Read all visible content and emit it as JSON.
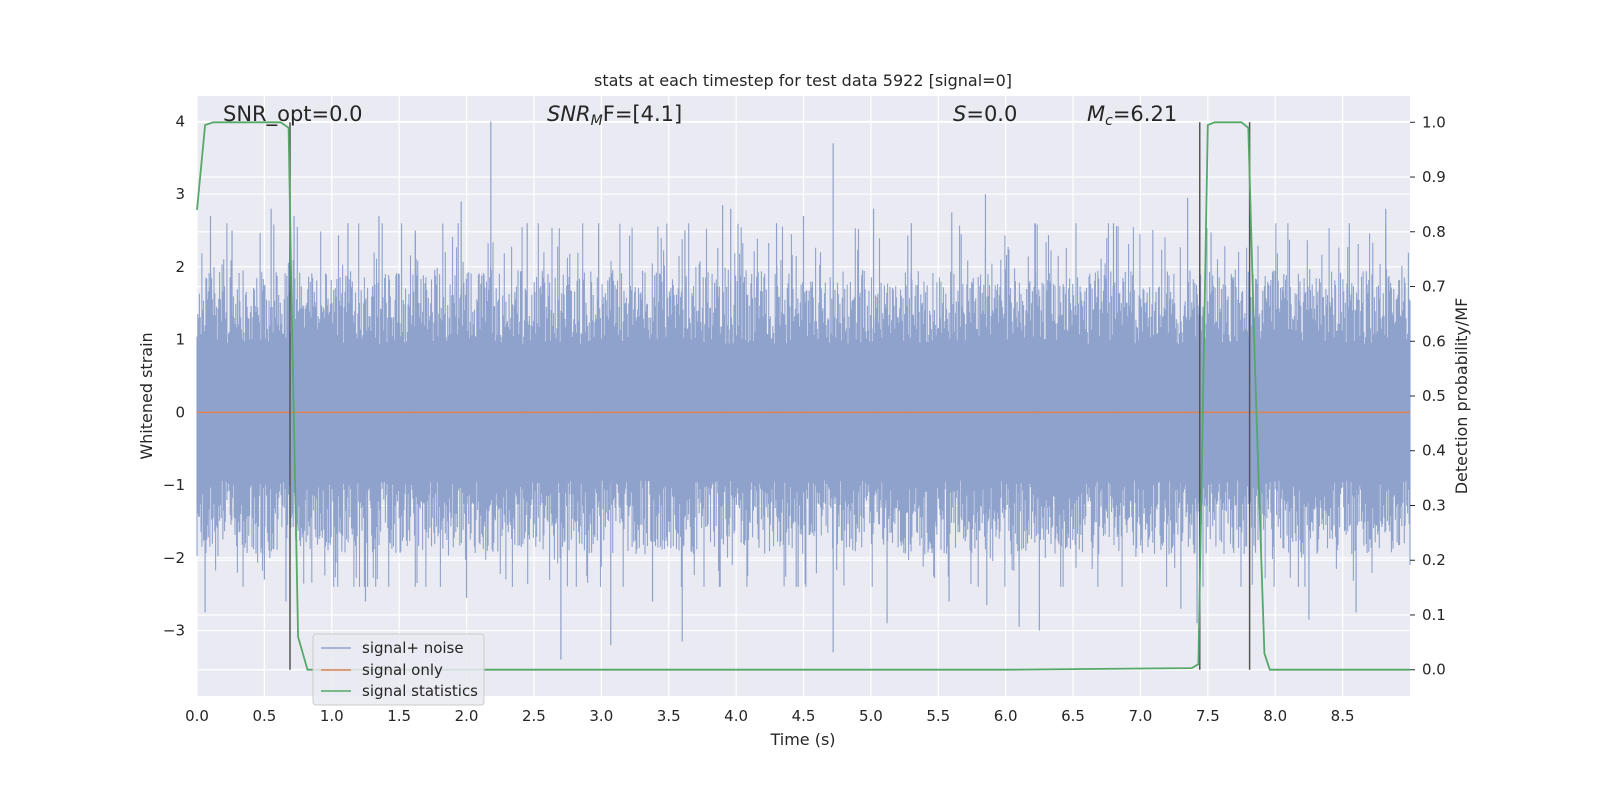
{
  "chart_data": {
    "type": "line",
    "title": "stats at each timestep for test data 5922 [signal=0]",
    "xlabel": "Time (s)",
    "ylabel_left": "Whitened strain",
    "ylabel_right": "Detection probability/MF",
    "xlim": [
      0.0,
      9.0
    ],
    "ylim_left": [
      -3.9,
      4.35
    ],
    "ylim_right": [
      -0.048,
      1.048
    ],
    "x_ticks": [
      "0.0",
      "0.5",
      "1.0",
      "1.5",
      "2.0",
      "2.5",
      "3.0",
      "3.5",
      "4.0",
      "4.5",
      "5.0",
      "5.5",
      "6.0",
      "6.5",
      "7.0",
      "7.5",
      "8.0",
      "8.5"
    ],
    "y_ticks_left": [
      "−3",
      "−2",
      "−1",
      "0",
      "1",
      "2",
      "3",
      "4"
    ],
    "y_ticks_right": [
      "0.0",
      "0.1",
      "0.2",
      "0.3",
      "0.4",
      "0.5",
      "0.6",
      "0.7",
      "0.8",
      "0.9",
      "1.0"
    ],
    "grid": true,
    "legend_location": "lower-left",
    "colors": {
      "noise": "#8ea2cc",
      "signal": "#dd8452",
      "stats": "#55a868",
      "vline": "#555555",
      "background": "#eaeaf2",
      "grid": "#ffffff"
    },
    "annotations": {
      "snr_opt": "SNR_opt=0.0",
      "snr_mf_base": "SNR",
      "snr_mf_sub": "M",
      "snr_mf_rest": "F=[4.1]",
      "s_var": "S",
      "s_rest": "=0.0",
      "mc_var": "M",
      "mc_sub": "c",
      "mc_rest": "=6.21"
    },
    "series": [
      {
        "name": "signal+ noise",
        "axis": "left",
        "description_level": "noise band roughly ±1.7 with spikes up to 4.0 and down to −3.4",
        "band": [
          -1.7,
          1.7
        ],
        "spikes": [
          [
            0.1,
            2.7
          ],
          [
            0.26,
            2.5
          ],
          [
            0.55,
            2.8
          ],
          [
            0.72,
            2.7
          ],
          [
            1.12,
            2.6
          ],
          [
            1.35,
            2.7
          ],
          [
            1.62,
            2.5
          ],
          [
            1.96,
            2.9
          ],
          [
            2.18,
            4.0
          ],
          [
            2.45,
            2.6
          ],
          [
            2.98,
            2.6
          ],
          [
            3.62,
            2.5
          ],
          [
            3.9,
            2.85
          ],
          [
            3.96,
            2.8
          ],
          [
            4.3,
            2.6
          ],
          [
            4.5,
            2.7
          ],
          [
            4.72,
            3.7
          ],
          [
            5.02,
            2.8
          ],
          [
            5.3,
            2.6
          ],
          [
            5.6,
            2.75
          ],
          [
            5.85,
            3.0
          ],
          [
            6.22,
            2.6
          ],
          [
            6.8,
            2.6
          ],
          [
            7.35,
            2.95
          ],
          [
            8.55,
            2.6
          ],
          [
            8.82,
            2.8
          ],
          [
            0.06,
            -2.75
          ],
          [
            0.5,
            -2.3
          ],
          [
            0.66,
            -2.6
          ],
          [
            1.25,
            -2.6
          ],
          [
            2.0,
            -2.55
          ],
          [
            2.7,
            -3.4
          ],
          [
            3.07,
            -3.2
          ],
          [
            3.38,
            -2.6
          ],
          [
            3.6,
            -3.15
          ],
          [
            4.46,
            -2.4
          ],
          [
            4.72,
            -3.3
          ],
          [
            5.12,
            -2.9
          ],
          [
            5.58,
            -2.6
          ],
          [
            5.86,
            -2.65
          ],
          [
            6.1,
            -2.95
          ],
          [
            6.25,
            -3.0
          ],
          [
            7.3,
            -2.7
          ],
          [
            7.42,
            -2.9
          ],
          [
            8.25,
            -2.85
          ],
          [
            8.6,
            -2.75
          ]
        ]
      },
      {
        "name": "signal only",
        "axis": "left",
        "x": [
          0.0,
          9.0
        ],
        "y": [
          0.0,
          0.0
        ]
      },
      {
        "name": "signal statistics",
        "axis": "right",
        "x": [
          0.0,
          0.06,
          0.12,
          0.5,
          0.62,
          0.68,
          0.7,
          0.75,
          0.82,
          1.0,
          3.0,
          6.0,
          7.38,
          7.43,
          7.5,
          7.55,
          7.75,
          7.8,
          7.85,
          7.92,
          7.96,
          8.1,
          9.0
        ],
        "y": [
          0.84,
          0.995,
          1.0,
          1.0,
          1.0,
          0.99,
          0.7,
          0.06,
          0.0,
          0.0,
          0.0,
          0.0,
          0.003,
          0.01,
          0.995,
          1.0,
          1.0,
          0.99,
          0.55,
          0.03,
          0.0,
          0.0,
          0.0
        ]
      }
    ],
    "vertical_lines_x": [
      0.69,
      7.44,
      7.81
    ]
  }
}
